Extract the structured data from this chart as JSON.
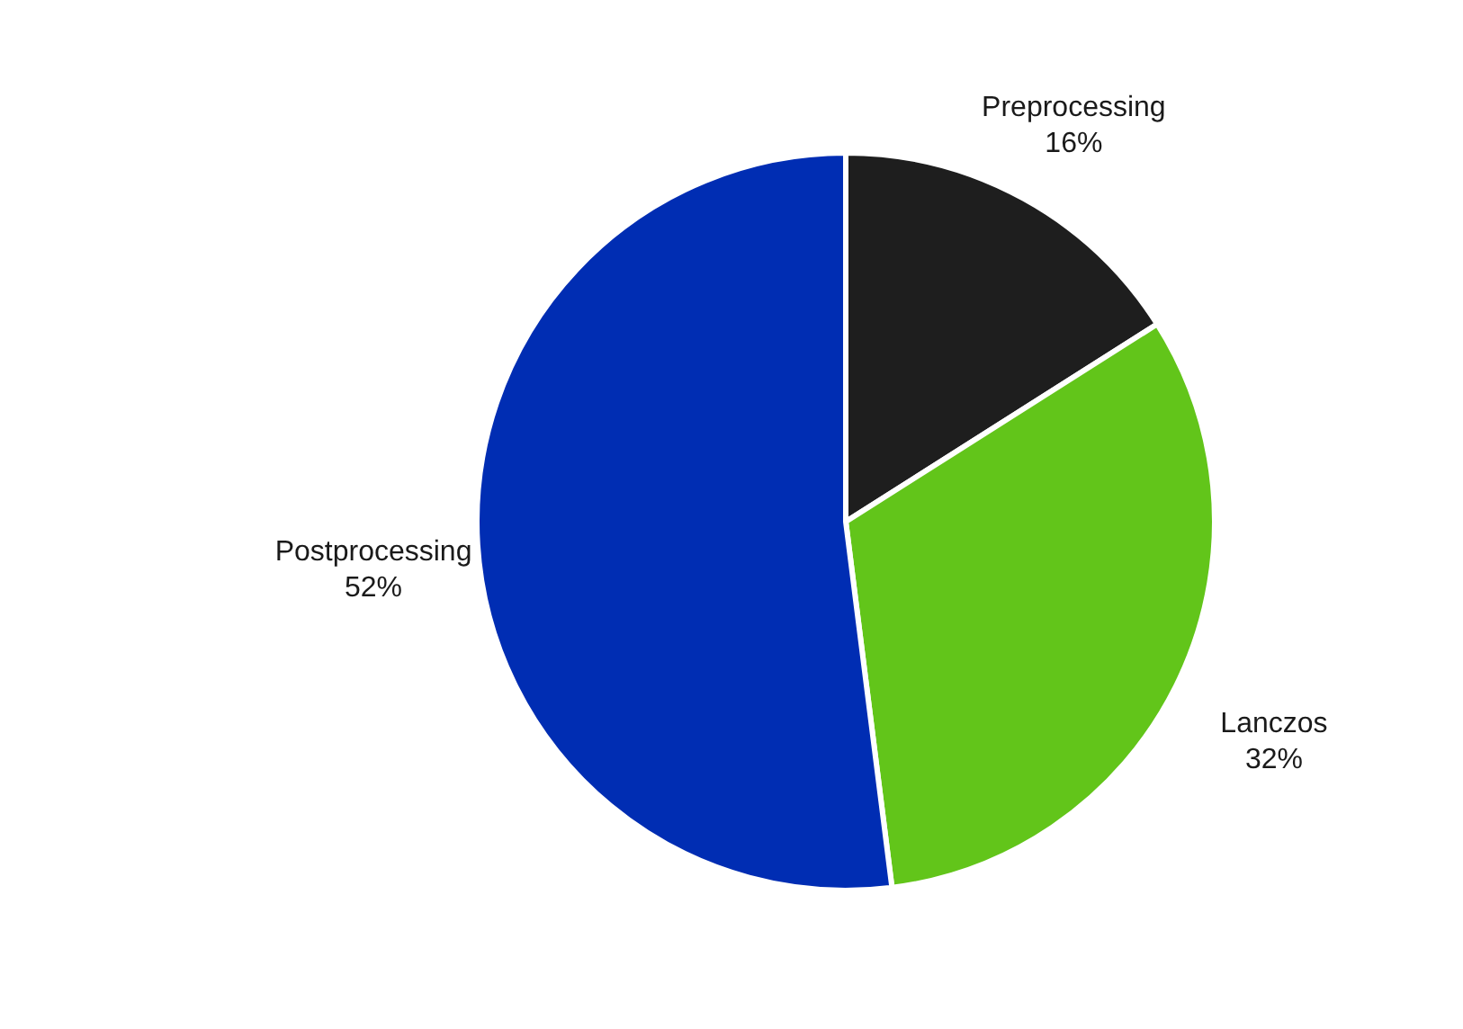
{
  "chart_data": {
    "type": "pie",
    "categories": [
      "Preprocessing",
      "Lanczos",
      "Postprocessing"
    ],
    "values": [
      16,
      32,
      52
    ],
    "value_labels": [
      "16%",
      "32%",
      "52%"
    ],
    "colors": [
      "#1e1e1e",
      "#62c51a",
      "#002db3"
    ]
  }
}
